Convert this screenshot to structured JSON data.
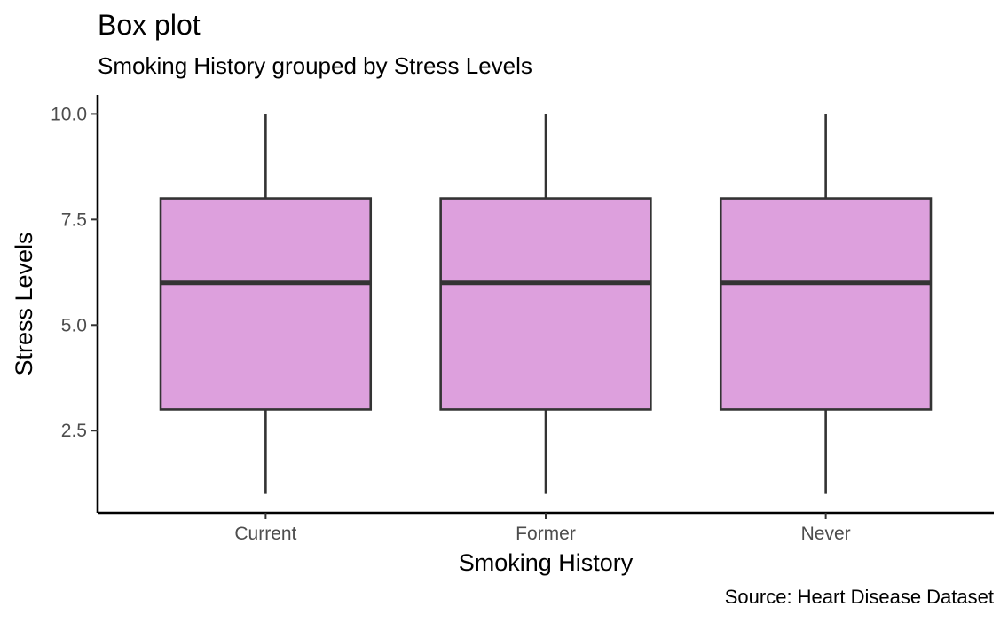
{
  "chart_data": {
    "type": "boxplot",
    "title": "Box plot",
    "subtitle": "Smoking History grouped by Stress Levels",
    "caption": "Source: Heart Disease Dataset",
    "xlabel": "Smoking History",
    "ylabel": "Stress Levels",
    "categories": [
      "Current",
      "Former",
      "Never"
    ],
    "boxes": [
      {
        "category": "Current",
        "min": 1,
        "q1": 3,
        "median": 6,
        "q3": 8,
        "max": 10
      },
      {
        "category": "Former",
        "min": 1,
        "q1": 3,
        "median": 6,
        "q3": 8,
        "max": 10
      },
      {
        "category": "Never",
        "min": 1,
        "q1": 3,
        "median": 6,
        "q3": 8,
        "max": 10
      }
    ],
    "ylim": [
      0.55,
      10.45
    ],
    "yticks": [
      2.5,
      5.0,
      7.5,
      10.0
    ],
    "ytick_labels": [
      "2.5",
      "5.0",
      "7.5",
      "10.0"
    ],
    "grid": false,
    "legend": "none",
    "colors": {
      "box_fill": "#dda0dd",
      "box_stroke": "#333333",
      "axis": "#000000"
    }
  }
}
